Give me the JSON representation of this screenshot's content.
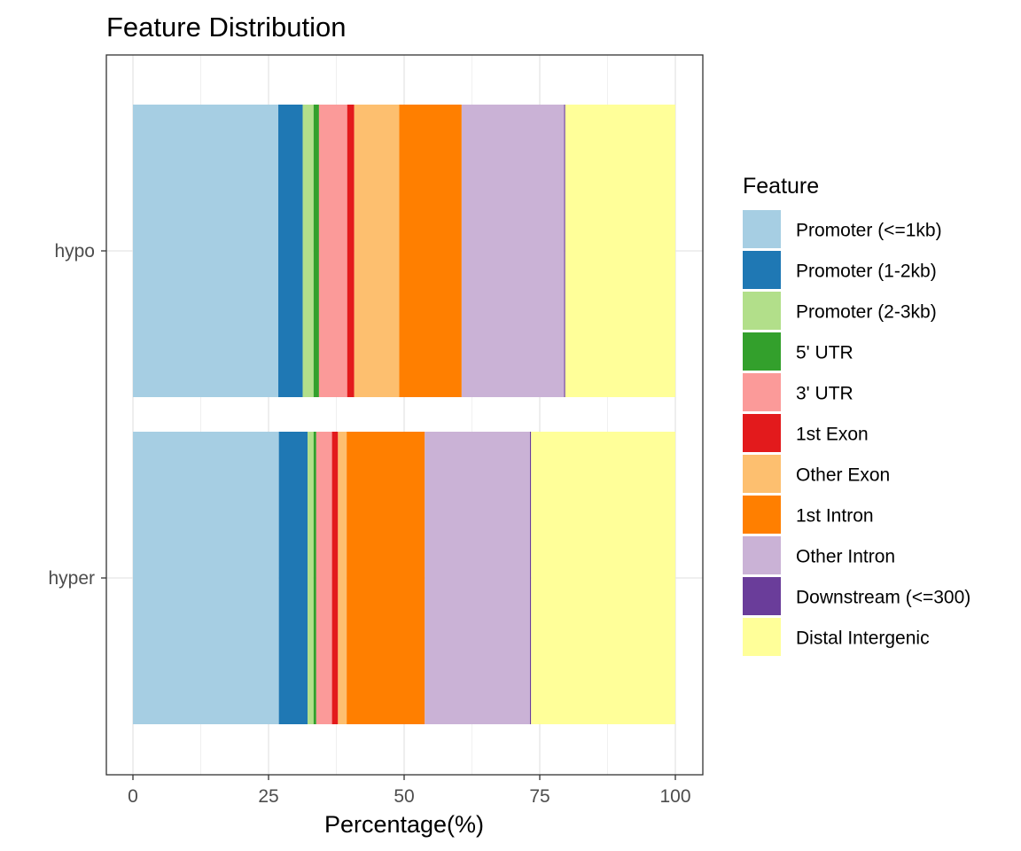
{
  "chart_data": {
    "type": "bar",
    "orientation": "horizontal",
    "stacked": true,
    "title": "Feature Distribution",
    "xlabel": "Percentage(%)",
    "ylabel": "",
    "xlim": [
      0,
      100
    ],
    "x_ticks": [
      0,
      25,
      50,
      75,
      100
    ],
    "grid": true,
    "legend_title": "Feature",
    "legend_position": "right",
    "categories": [
      "hypo",
      "hyper"
    ],
    "series": [
      {
        "name": "Promoter (<=1kb)",
        "color": "#A6CEE3",
        "values": [
          26.8,
          26.9
        ]
      },
      {
        "name": "Promoter (1-2kb)",
        "color": "#1F78B4",
        "values": [
          4.5,
          5.3
        ]
      },
      {
        "name": "Promoter (2-3kb)",
        "color": "#B2DF8A",
        "values": [
          2.0,
          1.1
        ]
      },
      {
        "name": "5' UTR",
        "color": "#33A02C",
        "values": [
          1.0,
          0.5
        ]
      },
      {
        "name": "3' UTR",
        "color": "#FB9A99",
        "values": [
          5.2,
          2.9
        ]
      },
      {
        "name": "1st Exon",
        "color": "#E31A1C",
        "values": [
          1.3,
          1.1
        ]
      },
      {
        "name": "Other Exon",
        "color": "#FDBF6F",
        "values": [
          8.3,
          1.6
        ]
      },
      {
        "name": "1st Intron",
        "color": "#FF7F00",
        "values": [
          11.5,
          14.4
        ]
      },
      {
        "name": "Other Intron",
        "color": "#CAB2D6",
        "values": [
          18.9,
          19.4
        ]
      },
      {
        "name": "Downstream (<=300)",
        "color": "#6A3D9A",
        "values": [
          0.2,
          0.2
        ]
      },
      {
        "name": "Distal Intergenic",
        "color": "#FFFF99",
        "values": [
          20.3,
          26.6
        ]
      }
    ]
  }
}
